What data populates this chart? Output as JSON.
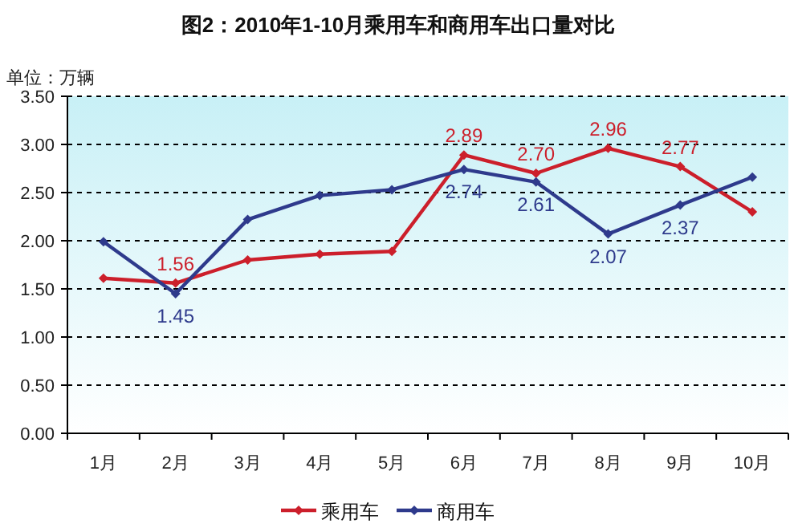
{
  "chart_data": {
    "type": "line",
    "title": "图2：2010年1-10月乘用车和商用车出口量对比",
    "ylabel": "单位：万辆",
    "categories": [
      "1月",
      "2月",
      "3月",
      "4月",
      "5月",
      "6月",
      "7月",
      "8月",
      "9月",
      "10月"
    ],
    "series": [
      {
        "name": "乘用车",
        "color": "#cc1f2b",
        "values": [
          1.61,
          1.56,
          1.8,
          1.86,
          1.89,
          2.89,
          2.7,
          2.96,
          2.77,
          2.3
        ],
        "value_labels": [
          null,
          "1.56",
          null,
          null,
          null,
          "2.89",
          "2.70",
          "2.96",
          "2.77",
          null
        ]
      },
      {
        "name": "商用车",
        "color": "#2e3a8c",
        "values": [
          1.99,
          1.45,
          2.22,
          2.47,
          2.53,
          2.74,
          2.61,
          2.07,
          2.37,
          2.66
        ],
        "value_labels": [
          null,
          "1.45",
          null,
          null,
          null,
          "2.74",
          "2.61",
          "2.07",
          "2.37",
          null
        ]
      }
    ],
    "ylim": [
      0,
      3.5
    ],
    "yticks": [
      {
        "value": 0,
        "label": "0.00"
      },
      {
        "value": 0.5,
        "label": "0.50"
      },
      {
        "value": 1,
        "label": "1.00"
      },
      {
        "value": 1.5,
        "label": "1.50"
      },
      {
        "value": 2,
        "label": "2.00"
      },
      {
        "value": 2.5,
        "label": "2.50"
      },
      {
        "value": 3,
        "label": "3.00"
      },
      {
        "value": 3.5,
        "label": "3.50"
      }
    ],
    "grid": "y",
    "legend": "bottom",
    "marker": "diamond",
    "line_style": "solid"
  }
}
